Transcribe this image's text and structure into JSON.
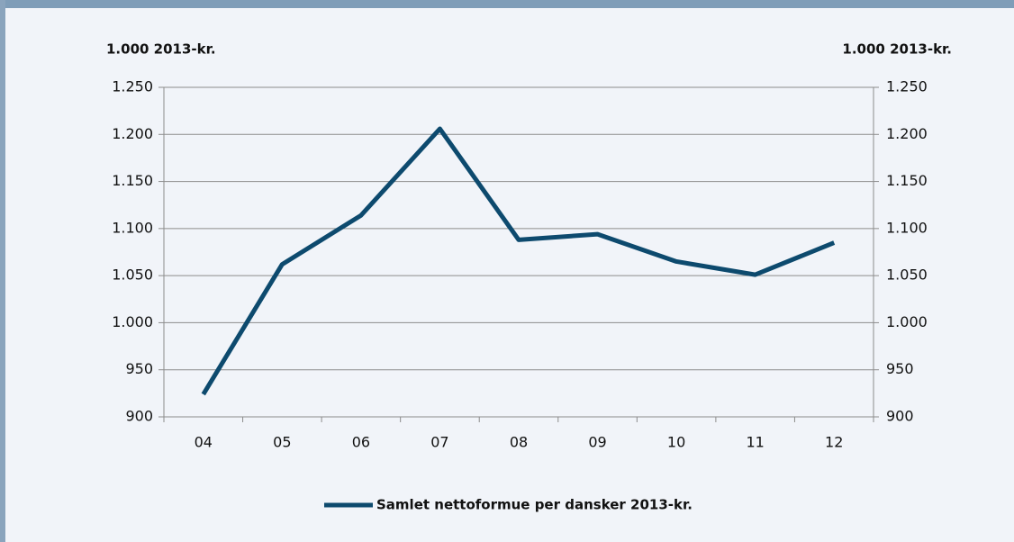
{
  "chart_data": {
    "type": "line",
    "y_label": "1.000 2013-kr.",
    "y2_label": "1.000 2013-kr.",
    "categories": [
      "04",
      "05",
      "06",
      "07",
      "08",
      "09",
      "10",
      "11",
      "12"
    ],
    "series": [
      {
        "name": "Samlet nettoformue per dansker 2013-kr.",
        "color": "#0d4a6e",
        "values": [
          924,
          1062,
          1114,
          1206,
          1088,
          1094,
          1065,
          1051,
          1085
        ]
      }
    ],
    "ylim": [
      900,
      1250
    ],
    "yticks": [
      900,
      950,
      {
        "value": 1000,
        "label": "1.000"
      },
      {
        "value": 1050,
        "label": "1.050"
      },
      {
        "value": 1100,
        "label": "1.100"
      },
      {
        "value": 1150,
        "label": "1.150"
      },
      {
        "value": 1200,
        "label": "1.200"
      },
      {
        "value": 1250,
        "label": "1.250"
      }
    ],
    "y2lim": [
      900,
      1250
    ],
    "y2ticks": [
      900,
      950,
      {
        "value": 1000,
        "label": "1.000"
      },
      {
        "value": 1050,
        "label": "1.050"
      },
      {
        "value": 1100,
        "label": "1.100"
      },
      {
        "value": 1150,
        "label": "1.150"
      },
      {
        "value": 1200,
        "label": "1.200"
      },
      {
        "value": 1250,
        "label": "1.250"
      }
    ],
    "grid": true,
    "legend": "bottom"
  }
}
